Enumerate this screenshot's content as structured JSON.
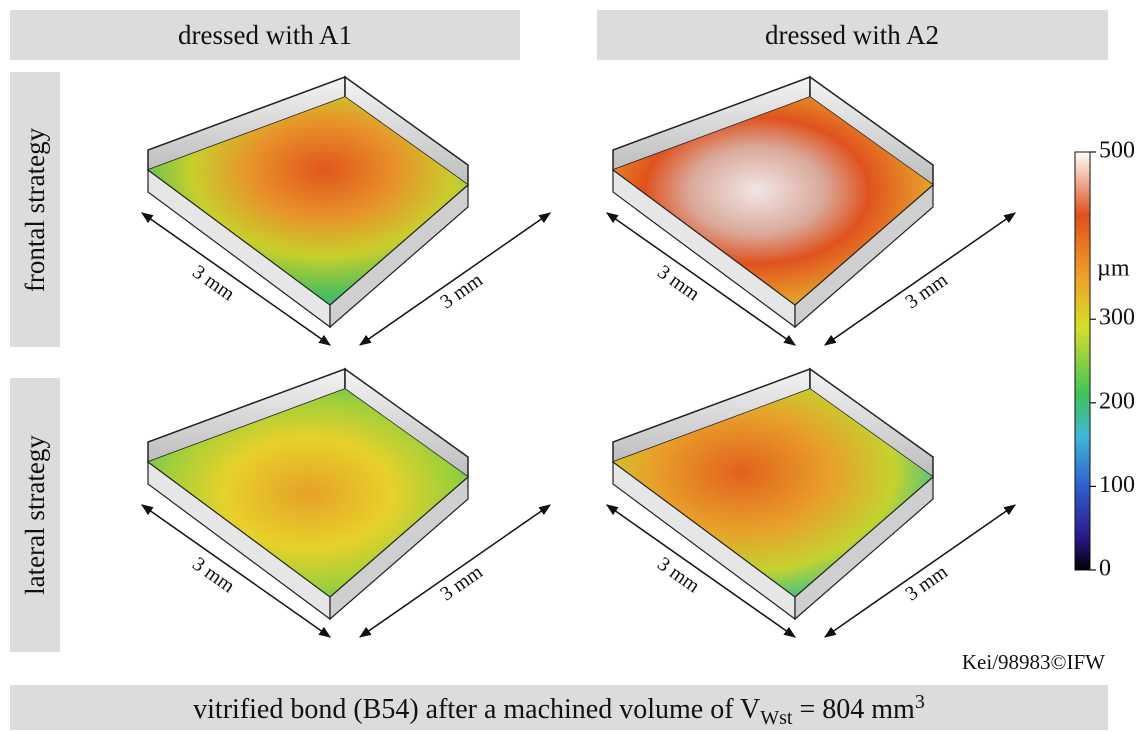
{
  "header": {
    "columns": [
      "dressed with A1",
      "dressed with A2"
    ],
    "rows": [
      "frontal strategy",
      "lateral strategy"
    ]
  },
  "panels": [
    {
      "labels": [
        "3 mm",
        "3 mm"
      ]
    },
    {
      "labels": [
        "3 mm",
        "3 mm"
      ]
    },
    {
      "labels": [
        "3 mm",
        "3 mm"
      ]
    },
    {
      "labels": [
        "3 mm",
        "3 mm"
      ]
    }
  ],
  "colorbar": {
    "unit": "µm",
    "range": [
      0,
      500
    ],
    "ticks": [
      0,
      100,
      200,
      300,
      500
    ]
  },
  "credit": "Kei/98983©IFW",
  "caption": {
    "text": "vitrified bond (B54) after a machined volume of V",
    "subscript": "Wst",
    "text2": " = 804 mm",
    "superscript": "3"
  }
}
